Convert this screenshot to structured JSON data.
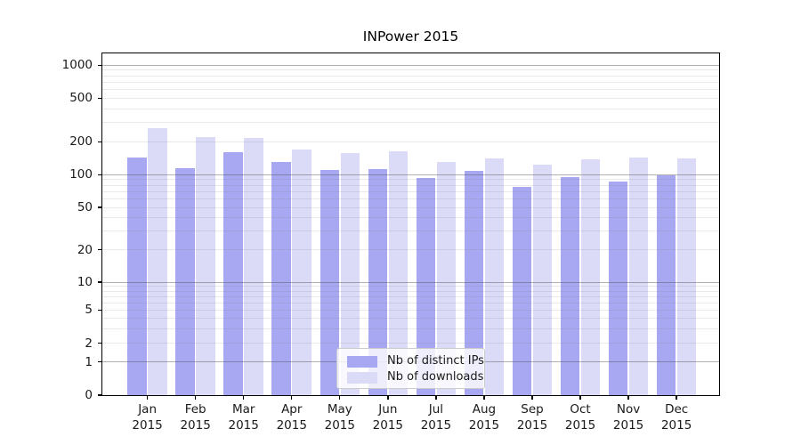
{
  "title": "INPower 2015",
  "chart_data": {
    "type": "bar",
    "title": "INPower 2015",
    "categories": [
      "Jan 2015",
      "Feb 2015",
      "Mar 2015",
      "Apr 2015",
      "May 2015",
      "Jun 2015",
      "Jul 2015",
      "Aug 2015",
      "Sep 2015",
      "Oct 2015",
      "Nov 2015",
      "Dec 2015"
    ],
    "series": [
      {
        "name": "Nb of distinct IPs",
        "color": "#a8a8f2",
        "values": [
          143,
          115,
          161,
          131,
          110,
          112,
          93,
          108,
          77,
          95,
          87,
          99
        ]
      },
      {
        "name": "Nb of downloads",
        "color": "#dbdbf8",
        "values": [
          267,
          220,
          215,
          169,
          157,
          165,
          131,
          140,
          124,
          139,
          144,
          142
        ]
      }
    ],
    "xlabel": "",
    "ylabel": "",
    "yscale": "symlog",
    "yticks": [
      0,
      1,
      2,
      5,
      10,
      20,
      50,
      100,
      200,
      500,
      1000
    ],
    "ylim": [
      0,
      1280
    ],
    "grid": true,
    "legend_position": "lower center"
  },
  "legend": {
    "items": [
      "Nb of distinct IPs",
      "Nb of downloads"
    ]
  }
}
